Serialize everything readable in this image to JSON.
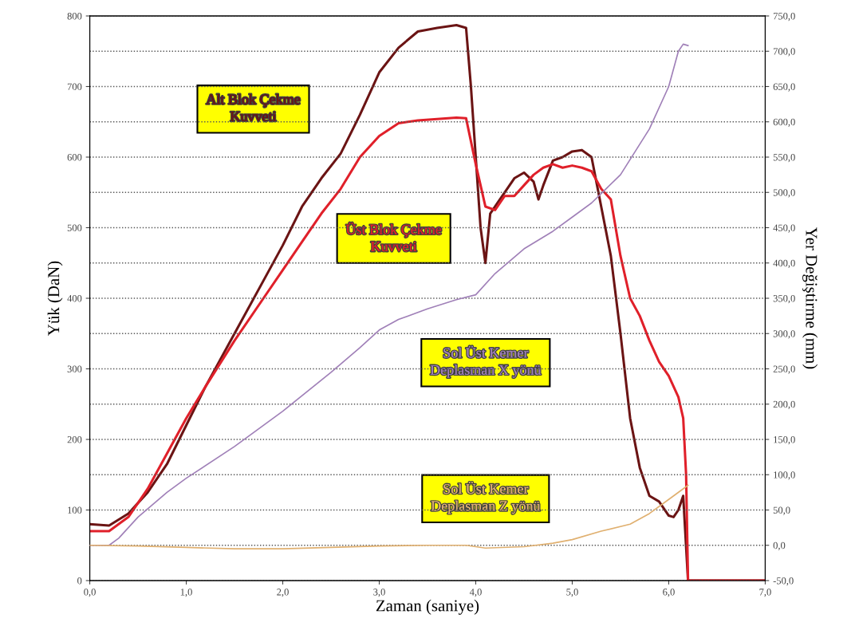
{
  "chart_data": {
    "type": "line",
    "xlabel": "Zaman (saniye)",
    "ylabel": "Yük (DaN)",
    "y2label": "Yer Değiştirme (mm)",
    "xlim": [
      0,
      7
    ],
    "xticks": [
      {
        "value": 0,
        "label": "0,0"
      },
      {
        "value": 1,
        "label": "1,0"
      },
      {
        "value": 2,
        "label": "2,0"
      },
      {
        "value": 3,
        "label": "3,0"
      },
      {
        "value": 4,
        "label": "4,0"
      },
      {
        "value": 5,
        "label": "5,0"
      },
      {
        "value": 6,
        "label": "6,0"
      },
      {
        "value": 7,
        "label": "7,0"
      }
    ],
    "ylim": [
      0,
      800
    ],
    "yticks": [
      0,
      100,
      200,
      300,
      400,
      500,
      600,
      700,
      800
    ],
    "y2lim": [
      -50,
      750
    ],
    "y2ticks": [
      {
        "value": -50,
        "label": "-50,0"
      },
      {
        "value": 0,
        "label": "0,0"
      },
      {
        "value": 50,
        "label": "50,0"
      },
      {
        "value": 100,
        "label": "100,0"
      },
      {
        "value": 150,
        "label": "150,0"
      },
      {
        "value": 200,
        "label": "200,0"
      },
      {
        "value": 250,
        "label": "250,0"
      },
      {
        "value": 300,
        "label": "300,0"
      },
      {
        "value": 350,
        "label": "350,0"
      },
      {
        "value": 400,
        "label": "400,0"
      },
      {
        "value": 450,
        "label": "450,0"
      },
      {
        "value": 500,
        "label": "500,0"
      },
      {
        "value": 550,
        "label": "550,0"
      },
      {
        "value": 600,
        "label": "600,0"
      },
      {
        "value": 650,
        "label": "650,0"
      },
      {
        "value": 700,
        "label": "700,0"
      },
      {
        "value": 750,
        "label": "750,0"
      }
    ],
    "grid": "y",
    "legend": false,
    "marker": "none",
    "line_style": "solid",
    "series": [
      {
        "name": "Alt Blok Çekme Kuvveti",
        "color": "#6b1414",
        "x": [
          0,
          0.2,
          0.4,
          0.6,
          0.8,
          1.0,
          1.2,
          1.5,
          1.8,
          2.0,
          2.2,
          2.4,
          2.6,
          2.8,
          3.0,
          3.2,
          3.4,
          3.6,
          3.8,
          3.9,
          3.95,
          4.0,
          4.05,
          4.1,
          4.15,
          4.25,
          4.4,
          4.5,
          4.6,
          4.65,
          4.7,
          4.8,
          4.9,
          5.0,
          5.1,
          5.2,
          5.3,
          5.4,
          5.5,
          5.6,
          5.7,
          5.8,
          5.9,
          6.0,
          6.05,
          6.1,
          6.15,
          6.2,
          7.0
        ],
        "values": [
          80,
          78,
          95,
          125,
          165,
          220,
          275,
          350,
          425,
          475,
          530,
          570,
          605,
          660,
          720,
          755,
          778,
          783,
          787,
          783,
          700,
          600,
          500,
          450,
          520,
          540,
          570,
          578,
          565,
          540,
          560,
          595,
          600,
          608,
          610,
          600,
          530,
          460,
          350,
          230,
          160,
          120,
          112,
          92,
          90,
          100,
          120,
          0,
          0
        ]
      },
      {
        "name": "Üst Blok Çekme Kuvveti",
        "color": "#e0202a",
        "x": [
          0,
          0.2,
          0.4,
          0.6,
          0.8,
          1.0,
          1.2,
          1.5,
          1.8,
          2.0,
          2.2,
          2.4,
          2.6,
          2.8,
          3.0,
          3.2,
          3.4,
          3.6,
          3.8,
          3.9,
          4.0,
          4.1,
          4.2,
          4.3,
          4.4,
          4.5,
          4.6,
          4.7,
          4.8,
          4.9,
          5.0,
          5.1,
          5.2,
          5.3,
          5.4,
          5.5,
          5.6,
          5.7,
          5.8,
          5.9,
          6.0,
          6.1,
          6.15,
          6.18,
          6.2,
          7.0
        ],
        "values": [
          70,
          70,
          90,
          130,
          180,
          230,
          275,
          340,
          400,
          440,
          480,
          520,
          555,
          600,
          630,
          648,
          652,
          654,
          656,
          655,
          590,
          530,
          525,
          545,
          545,
          560,
          575,
          585,
          590,
          585,
          588,
          585,
          580,
          555,
          540,
          460,
          400,
          375,
          340,
          310,
          290,
          260,
          230,
          150,
          0,
          0
        ]
      },
      {
        "name": "Sol Üst Kemer Deplasman X yönü",
        "color": "#a080b8",
        "axis": "y2",
        "x": [
          0,
          0.2,
          0.3,
          0.5,
          0.8,
          1.0,
          1.5,
          2.0,
          2.5,
          2.8,
          3.0,
          3.2,
          3.5,
          3.8,
          4.0,
          4.2,
          4.5,
          4.8,
          5.0,
          5.2,
          5.5,
          5.8,
          6.0,
          6.1,
          6.15,
          6.2
        ],
        "values": [
          0,
          0,
          10,
          40,
          75,
          95,
          140,
          190,
          245,
          280,
          305,
          320,
          335,
          348,
          355,
          385,
          420,
          445,
          465,
          485,
          525,
          590,
          650,
          700,
          710,
          708
        ]
      },
      {
        "name": "Sol Üst Kemer Deplasman Z yönü",
        "color": "#e0b070",
        "axis": "y2",
        "x": [
          0,
          0.5,
          1.0,
          1.5,
          2.0,
          2.5,
          3.0,
          3.5,
          3.9,
          4.1,
          4.5,
          4.8,
          5.0,
          5.3,
          5.6,
          5.8,
          6.0,
          6.2
        ],
        "values": [
          0,
          -1,
          -3,
          -5,
          -5,
          -3,
          -1,
          0,
          0,
          -4,
          -2,
          3,
          8,
          20,
          30,
          45,
          65,
          85
        ]
      }
    ]
  }
}
